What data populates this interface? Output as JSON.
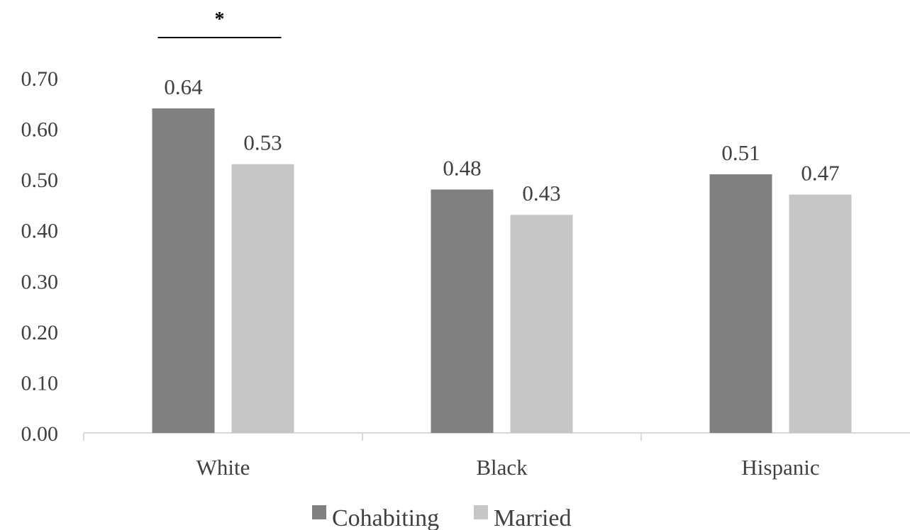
{
  "chart_data": {
    "type": "bar",
    "categories": [
      "White",
      "Black",
      "Hispanic"
    ],
    "series": [
      {
        "name": "Cohabiting",
        "values": [
          0.64,
          0.48,
          0.51
        ],
        "color": "#808080"
      },
      {
        "name": "Married",
        "values": [
          0.53,
          0.43,
          0.47
        ],
        "color": "#c6c6c6"
      }
    ],
    "data_labels": [
      [
        "0.64",
        "0.48",
        "0.51"
      ],
      [
        "0.53",
        "0.43",
        "0.47"
      ]
    ],
    "yticks": [
      "0.00",
      "0.10",
      "0.20",
      "0.30",
      "0.40",
      "0.50",
      "0.60",
      "0.70"
    ],
    "ylim": [
      0,
      0.7
    ],
    "title": "",
    "xlabel": "",
    "ylabel": "",
    "grid": false,
    "legend_position": "bottom",
    "annotations": [
      {
        "text": "*",
        "category": "White"
      }
    ],
    "axis_color": "#d9d9d9",
    "text_color": "#404040"
  }
}
